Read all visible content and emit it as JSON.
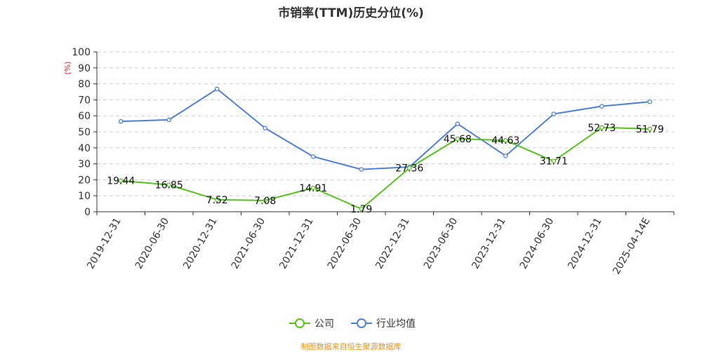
{
  "chart_data": {
    "type": "line",
    "title": "市销率(TTM)历史分位(%)",
    "ylabel": "(%)",
    "ylim": [
      0,
      100
    ],
    "yticks": [
      0,
      10,
      20,
      30,
      40,
      50,
      60,
      70,
      80,
      90,
      100
    ],
    "grid": true,
    "legend_position": "bottom",
    "categories": [
      "2019-12-31",
      "2020-06-30",
      "2020-12-31",
      "2021-06-30",
      "2021-12-31",
      "2022-06-30",
      "2022-12-31",
      "2023-06-30",
      "2023-12-31",
      "2024-06-30",
      "2024-12-31",
      "2025-04-14E"
    ],
    "series": [
      {
        "name": "公司",
        "color": "#52c41a",
        "values": [
          19.44,
          16.85,
          7.52,
          7.08,
          14.91,
          1.79,
          27.36,
          45.68,
          44.63,
          31.71,
          52.73,
          51.79
        ],
        "labels": [
          "19.44",
          "16.85",
          "7.52",
          "7.08",
          "14.91",
          "1.79",
          "27.36",
          "45.68",
          "44.63",
          "31.71",
          "52.73",
          "51.79"
        ]
      },
      {
        "name": "行业均值",
        "color": "#4e7fd8",
        "values": [
          56.5,
          57.5,
          76.8,
          52.3,
          34.5,
          26.5,
          28.0,
          55.0,
          35.0,
          61.2,
          66.0,
          68.8
        ]
      }
    ]
  },
  "source": "制图数据来自恒生聚源数据库"
}
